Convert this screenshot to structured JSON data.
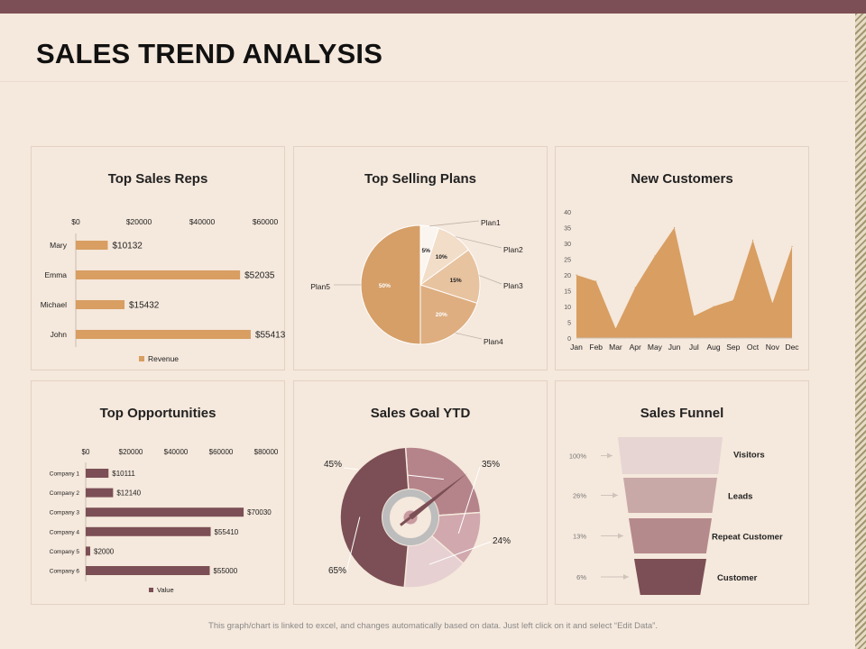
{
  "page": {
    "title": "SALES TREND ANALYSIS",
    "footer": "This graph/chart is linked to excel, and changes automatically based on data. Just left click on it and select “Edit Data”."
  },
  "colors": {
    "tan": "#d89e62",
    "maroon": "#7b4f55",
    "plan_fills": [
      "#fbf5ef",
      "#f2ddc8",
      "#e8c3a0",
      "#deae80",
      "#d69f68"
    ],
    "goal_fills": [
      "#b5848a",
      "#d0a8ad",
      "#e6d0d2",
      "#7b4f55"
    ],
    "funnel_fills": [
      "#e6d5d3",
      "#c9a8a8",
      "#b58a8c",
      "#7b4f55"
    ]
  },
  "chart_data": [
    {
      "id": "top-sales-reps",
      "type": "bar",
      "orientation": "horizontal",
      "title": "Top Sales Reps",
      "categories": [
        "Mary",
        "Emma",
        "Michael",
        "John"
      ],
      "values": [
        10132,
        52035,
        15432,
        55413
      ],
      "data_labels": [
        "$10132",
        "$52035",
        "$15432",
        "$55413"
      ],
      "xticks": [
        0,
        20000,
        40000,
        60000
      ],
      "xtick_labels": [
        "$0",
        "$20000",
        "$40000",
        "$60000"
      ],
      "xlim": [
        0,
        60000
      ],
      "legend": "Revenue",
      "legend_position": "bottom"
    },
    {
      "id": "top-selling-plans",
      "type": "pie",
      "title": "Top Selling Plans",
      "labels": [
        "Plan1",
        "Plan2",
        "Plan3",
        "Plan4",
        "Plan5"
      ],
      "values": [
        5,
        10,
        15,
        20,
        50
      ],
      "data_labels": [
        "5%",
        "10%",
        "15%",
        "20%",
        "50%"
      ]
    },
    {
      "id": "new-customers",
      "type": "area",
      "title": "New Customers",
      "categories": [
        "Jan",
        "Feb",
        "Mar",
        "Apr",
        "May",
        "Jun",
        "Jul",
        "Aug",
        "Sep",
        "Oct",
        "Nov",
        "Dec"
      ],
      "values": [
        20,
        18,
        3,
        16,
        26,
        35,
        7,
        10,
        12,
        31,
        11,
        29
      ],
      "yticks": [
        0,
        5,
        10,
        15,
        20,
        25,
        30,
        35,
        40
      ],
      "ylim": [
        0,
        40
      ]
    },
    {
      "id": "top-opportunities",
      "type": "bar",
      "orientation": "horizontal",
      "title": "Top Opportunities",
      "categories": [
        "Company 1",
        "Company 2",
        "Company 3",
        "Company 4",
        "Company 5",
        "Company 6"
      ],
      "values": [
        10111,
        12140,
        70030,
        55410,
        2000,
        55000
      ],
      "data_labels": [
        "$10111",
        "$12140",
        "$70030",
        "$55410",
        "$2000",
        "$55000"
      ],
      "xticks": [
        0,
        20000,
        40000,
        60000,
        80000
      ],
      "xtick_labels": [
        "$0",
        "$20000",
        "$40000",
        "$60000",
        "$80000"
      ],
      "xlim": [
        0,
        80000
      ],
      "legend": "Value",
      "legend_position": "bottom"
    },
    {
      "id": "sales-goal-ytd",
      "type": "pie",
      "title": "Sales Goal YTD",
      "segments": [
        {
          "label": "45%",
          "value": 20
        },
        {
          "label": "35%",
          "value": 10
        },
        {
          "label": "24%",
          "value": 12
        },
        {
          "label": "65%",
          "value": 38
        }
      ],
      "total": 80,
      "gauge": true
    },
    {
      "id": "sales-funnel",
      "type": "funnel",
      "title": "Sales Funnel",
      "stages": [
        "Visitors",
        "Leads",
        "Repeat Customer",
        "Customer"
      ],
      "values": [
        100,
        26,
        13,
        6
      ],
      "data_labels": [
        "100%",
        "26%",
        "13%",
        "6%"
      ]
    }
  ]
}
